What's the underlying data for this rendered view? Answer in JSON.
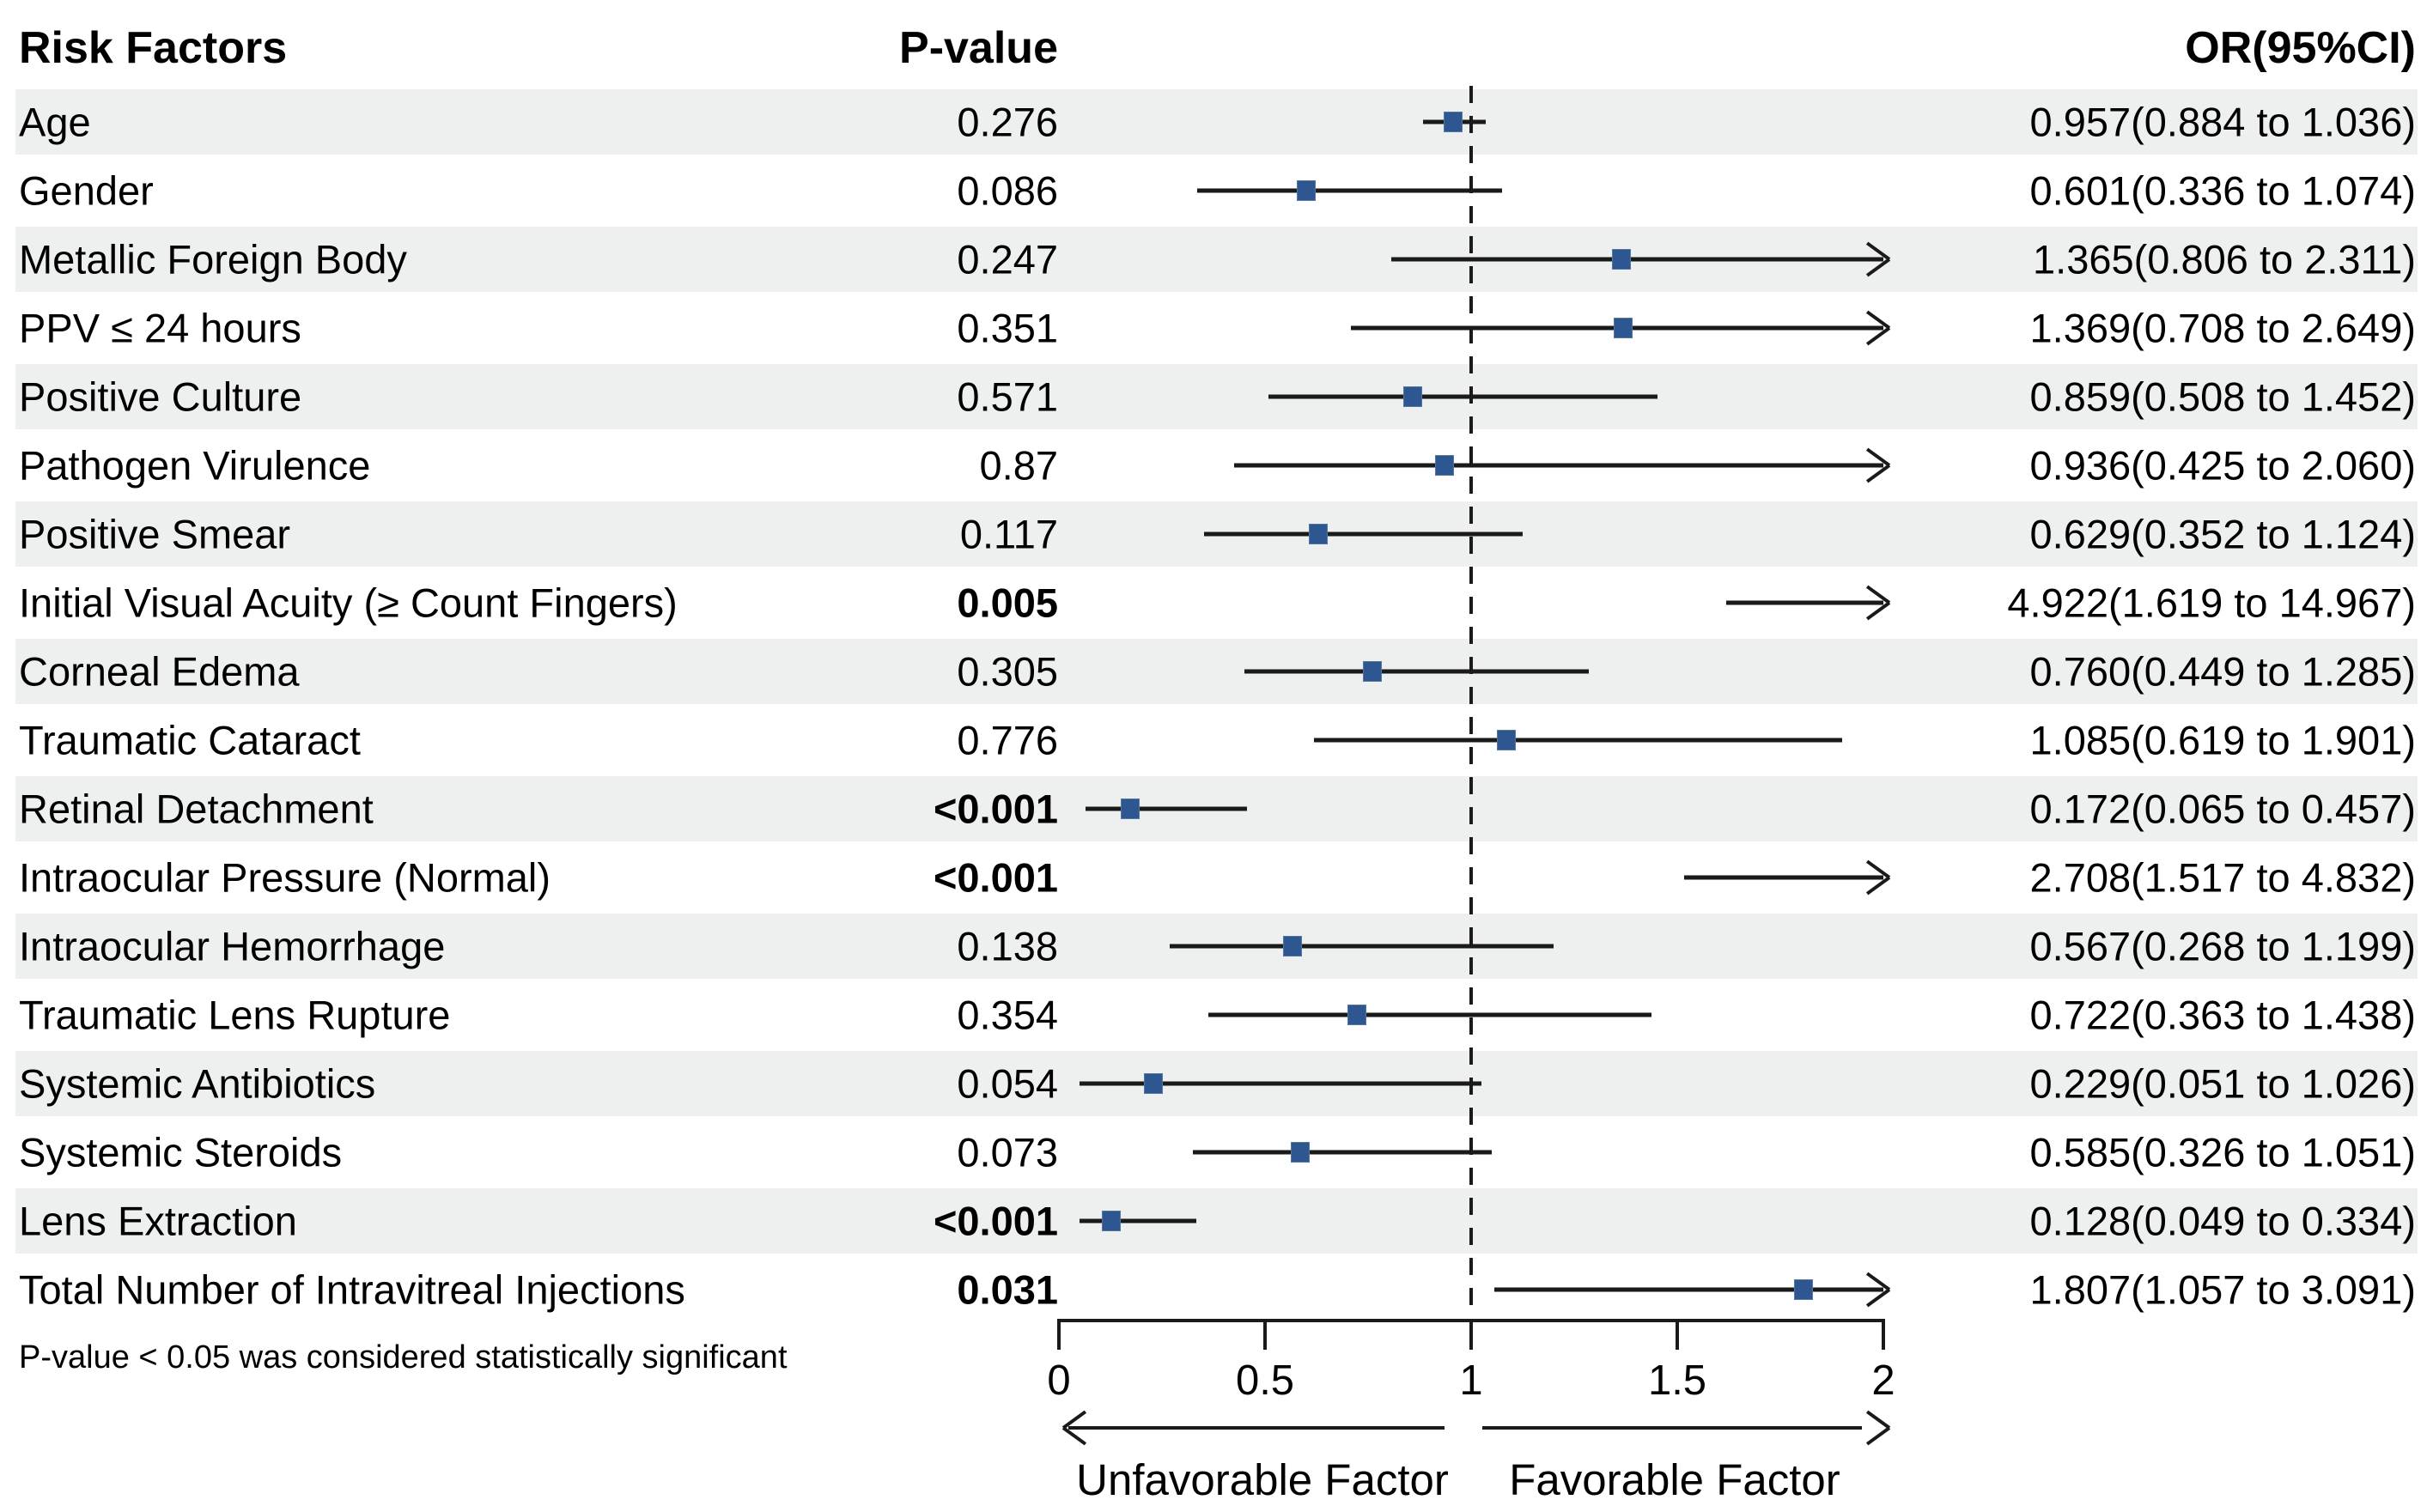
{
  "header": {
    "risk_factors": "Risk Factors",
    "p_value": "P-value",
    "or_ci": "OR(95%CI)"
  },
  "footnote": "P-value < 0.05 was considered statistically significant",
  "direction_labels": {
    "left": "Unfavorable Factor",
    "right": "Favorable Factor"
  },
  "colors": {
    "marker_blue": "#2e5791",
    "shaded_row": "#edf0ee",
    "line_black": "#1a1a1a",
    "background": "#ffffff"
  },
  "chart_data": {
    "type": "forest",
    "title": "",
    "xlabel_ticks": [
      "0",
      "0.5",
      "1",
      "1.5",
      "2"
    ],
    "tick_values": [
      0,
      0.5,
      1,
      1.5,
      2
    ],
    "xlim": [
      0,
      2
    ],
    "reference_line": 1,
    "note": "CIs extending beyond 2 are drawn clipped with a right arrowhead; ORs above 2 have no visible marker",
    "rows": [
      {
        "label": "Age",
        "p": "0.276",
        "p_bold": false,
        "or": 0.957,
        "lo": 0.884,
        "hi": 1.036,
        "or_text": "0.957(0.884 to 1.036)",
        "shaded": true
      },
      {
        "label": "Gender",
        "p": "0.086",
        "p_bold": false,
        "or": 0.601,
        "lo": 0.336,
        "hi": 1.074,
        "or_text": "0.601(0.336 to 1.074)",
        "shaded": false
      },
      {
        "label": "Metallic Foreign Body",
        "p": "0.247",
        "p_bold": false,
        "or": 1.365,
        "lo": 0.806,
        "hi": 2.311,
        "or_text": "1.365(0.806 to 2.311)",
        "shaded": true
      },
      {
        "label": "PPV ≤ 24 hours",
        "p": "0.351",
        "p_bold": false,
        "or": 1.369,
        "lo": 0.708,
        "hi": 2.649,
        "or_text": "1.369(0.708 to 2.649)",
        "shaded": false
      },
      {
        "label": "Positive Culture",
        "p": "0.571",
        "p_bold": false,
        "or": 0.859,
        "lo": 0.508,
        "hi": 1.452,
        "or_text": "0.859(0.508 to 1.452)",
        "shaded": true
      },
      {
        "label": "Pathogen Virulence",
        "p": "0.87",
        "p_bold": false,
        "or": 0.936,
        "lo": 0.425,
        "hi": 2.06,
        "or_text": "0.936(0.425 to 2.060)",
        "shaded": false
      },
      {
        "label": "Positive Smear",
        "p": "0.117",
        "p_bold": false,
        "or": 0.629,
        "lo": 0.352,
        "hi": 1.124,
        "or_text": "0.629(0.352 to 1.124)",
        "shaded": true
      },
      {
        "label": "Initial Visual Acuity (≥ Count Fingers)",
        "p": "0.005",
        "p_bold": true,
        "or": 4.922,
        "lo": 1.619,
        "hi": 14.967,
        "or_text": "4.922(1.619 to 14.967)",
        "shaded": false
      },
      {
        "label": "Corneal Edema",
        "p": "0.305",
        "p_bold": false,
        "or": 0.76,
        "lo": 0.449,
        "hi": 1.285,
        "or_text": "0.760(0.449 to 1.285)",
        "shaded": true
      },
      {
        "label": "Traumatic Cataract",
        "p": "0.776",
        "p_bold": false,
        "or": 1.085,
        "lo": 0.619,
        "hi": 1.901,
        "or_text": "1.085(0.619 to 1.901)",
        "shaded": false
      },
      {
        "label": "Retinal Detachment",
        "p": "<0.001",
        "p_bold": true,
        "or": 0.172,
        "lo": 0.065,
        "hi": 0.457,
        "or_text": "0.172(0.065 to 0.457)",
        "shaded": true
      },
      {
        "label": "Intraocular Pressure (Normal)",
        "p": "<0.001",
        "p_bold": true,
        "or": 2.708,
        "lo": 1.517,
        "hi": 4.832,
        "or_text": "2.708(1.517 to 4.832)",
        "shaded": false
      },
      {
        "label": "Intraocular Hemorrhage",
        "p": "0.138",
        "p_bold": false,
        "or": 0.567,
        "lo": 0.268,
        "hi": 1.199,
        "or_text": "0.567(0.268 to 1.199)",
        "shaded": true
      },
      {
        "label": "Traumatic Lens Rupture",
        "p": "0.354",
        "p_bold": false,
        "or": 0.722,
        "lo": 0.363,
        "hi": 1.438,
        "or_text": "0.722(0.363 to 1.438)",
        "shaded": false
      },
      {
        "label": "Systemic Antibiotics",
        "p": "0.054",
        "p_bold": false,
        "or": 0.229,
        "lo": 0.051,
        "hi": 1.026,
        "or_text": "0.229(0.051 to 1.026)",
        "shaded": true
      },
      {
        "label": "Systemic Steroids",
        "p": "0.073",
        "p_bold": false,
        "or": 0.585,
        "lo": 0.326,
        "hi": 1.051,
        "or_text": "0.585(0.326 to 1.051)",
        "shaded": false
      },
      {
        "label": "Lens Extraction",
        "p": "<0.001",
        "p_bold": true,
        "or": 0.128,
        "lo": 0.049,
        "hi": 0.334,
        "or_text": "0.128(0.049 to 0.334)",
        "shaded": true
      },
      {
        "label": "Total Number of Intravitreal Injections",
        "p": "0.031",
        "p_bold": true,
        "or": 1.807,
        "lo": 1.057,
        "hi": 3.091,
        "or_text": "1.807(1.057 to 3.091)",
        "shaded": false
      }
    ]
  }
}
